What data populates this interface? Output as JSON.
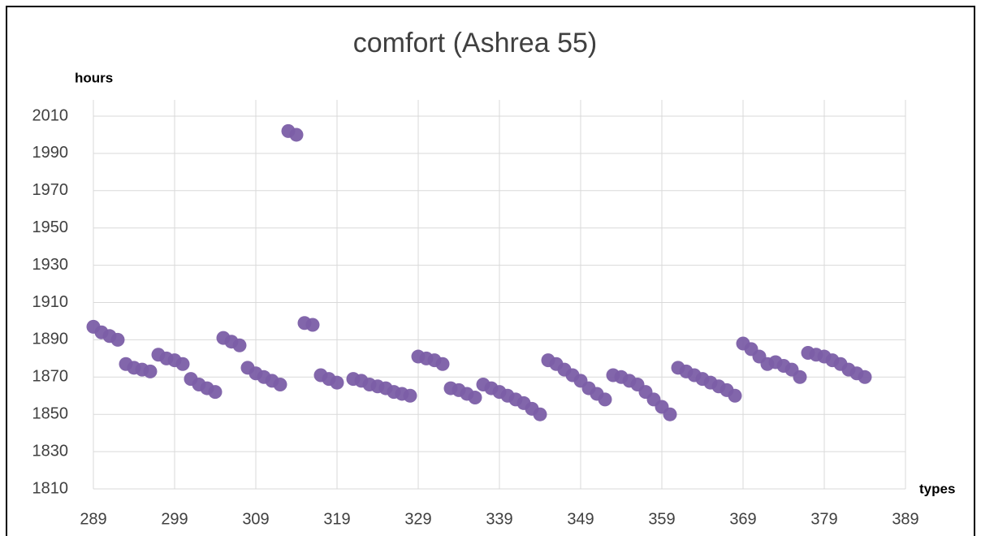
{
  "chart_data": {
    "type": "scatter",
    "title": "comfort (Ashrea 55)",
    "y_label": "hours",
    "x_label": "types",
    "color": "#7b5ea7",
    "grid": true,
    "xlim": [
      289,
      389
    ],
    "xticks": [
      289,
      299,
      309,
      319,
      329,
      339,
      349,
      359,
      369,
      379,
      389
    ],
    "ylim": [
      1810,
      2010
    ],
    "yticks": [
      1810,
      1830,
      1850,
      1870,
      1890,
      1910,
      1930,
      1950,
      1970,
      1990,
      2010
    ],
    "x": [
      289,
      290,
      291,
      292,
      293,
      294,
      295,
      296,
      297,
      298,
      299,
      300,
      301,
      302,
      303,
      304,
      305,
      306,
      307,
      308,
      309,
      310,
      311,
      312,
      313,
      314,
      315,
      316,
      317,
      318,
      319,
      321,
      322,
      323,
      324,
      325,
      326,
      327,
      328,
      329,
      330,
      331,
      332,
      333,
      334,
      335,
      336,
      337,
      338,
      339,
      340,
      341,
      342,
      343,
      344,
      345,
      346,
      347,
      348,
      349,
      350,
      351,
      352,
      353,
      354,
      355,
      356,
      357,
      358,
      359,
      360,
      361,
      362,
      363,
      364,
      365,
      366,
      367,
      368,
      369,
      370,
      371,
      372,
      373,
      374,
      375,
      376,
      377,
      378,
      379,
      380,
      381,
      382,
      383,
      384
    ],
    "values": [
      1897,
      1894,
      1892,
      1890,
      1877,
      1875,
      1874,
      1873,
      1882,
      1880,
      1879,
      1877,
      1869,
      1866,
      1864,
      1862,
      1891,
      1889,
      1887,
      1875,
      1872,
      1870,
      1868,
      1866,
      2002,
      2000,
      1899,
      1898,
      1871,
      1869,
      1867,
      1869,
      1868,
      1866,
      1865,
      1864,
      1862,
      1861,
      1860,
      1881,
      1880,
      1879,
      1877,
      1864,
      1863,
      1861,
      1859,
      1866,
      1864,
      1862,
      1860,
      1858,
      1856,
      1853,
      1850,
      1879,
      1877,
      1874,
      1871,
      1868,
      1864,
      1861,
      1858,
      1871,
      1870,
      1868,
      1866,
      1862,
      1858,
      1854,
      1850,
      1875,
      1873,
      1871,
      1869,
      1867,
      1865,
      1863,
      1860,
      1888,
      1885,
      1881,
      1877,
      1878,
      1876,
      1874,
      1870,
      1883,
      1882,
      1881,
      1879,
      1877,
      1874,
      1872,
      1870
    ]
  }
}
